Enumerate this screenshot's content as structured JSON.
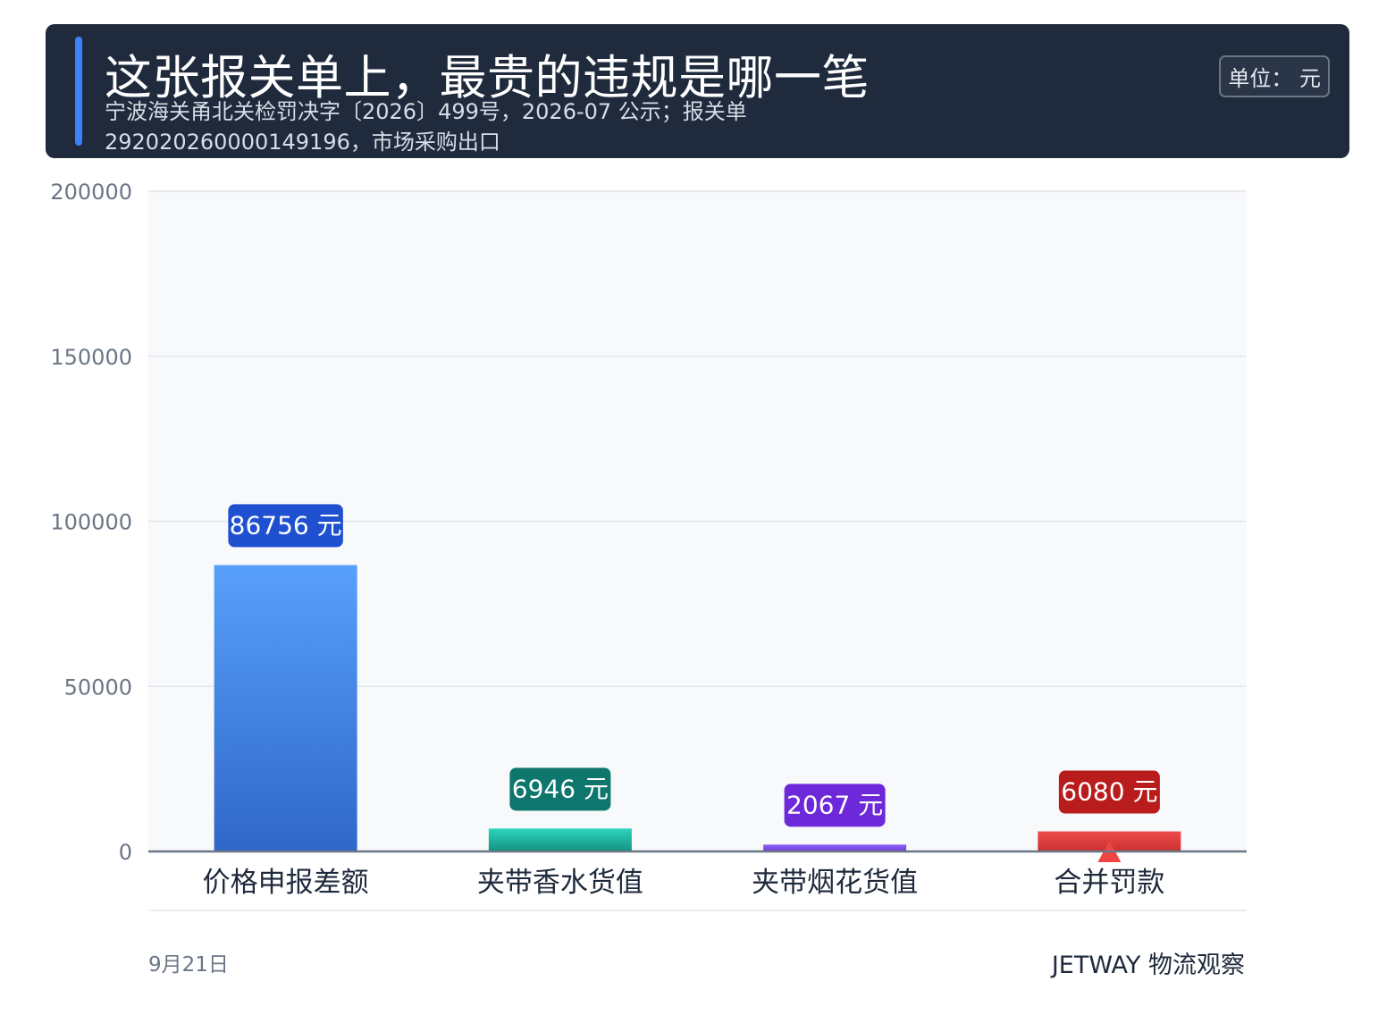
{
  "header": {
    "title": "这张报关单上，最贵的违规是哪一笔",
    "subtitle": "宁波海关甬北关检罚决字〔2026〕499号，2026-07 公示；报关单 292020260000149196，市场采购出口",
    "unit_badge": "单位： 元"
  },
  "chart_data": {
    "type": "bar",
    "title": "这张报关单上，最贵的违规是哪一笔",
    "unit": "元",
    "categories": [
      "价格申报差额",
      "夹带香水货值",
      "夹带烟花货值",
      "合并罚款"
    ],
    "values": [
      86756,
      6946,
      2067,
      6080
    ],
    "data_labels": [
      "86756 元",
      "6946 元",
      "2067 元",
      "6080 元"
    ],
    "y_ticks": [
      "0",
      "50000",
      "100000",
      "150000",
      "200000"
    ],
    "ylim": [
      0,
      200000
    ],
    "grid": true,
    "colors": {
      "bars": [
        [
          "#58a0fb",
          "#2f67c8"
        ],
        [
          "#2dd4bf",
          "#14917f"
        ],
        [
          "#8b5cf6",
          "#7040d8"
        ],
        [
          "#ef4a4a",
          "#c93030"
        ]
      ],
      "labels": [
        "#1e50d0",
        "#0f766e",
        "#6d28d9",
        "#b91c1c"
      ],
      "marker": "#ef4444"
    },
    "highlight_index": 3
  },
  "footer": {
    "date": "9月21日",
    "brand": "JETWAY 物流观察"
  }
}
